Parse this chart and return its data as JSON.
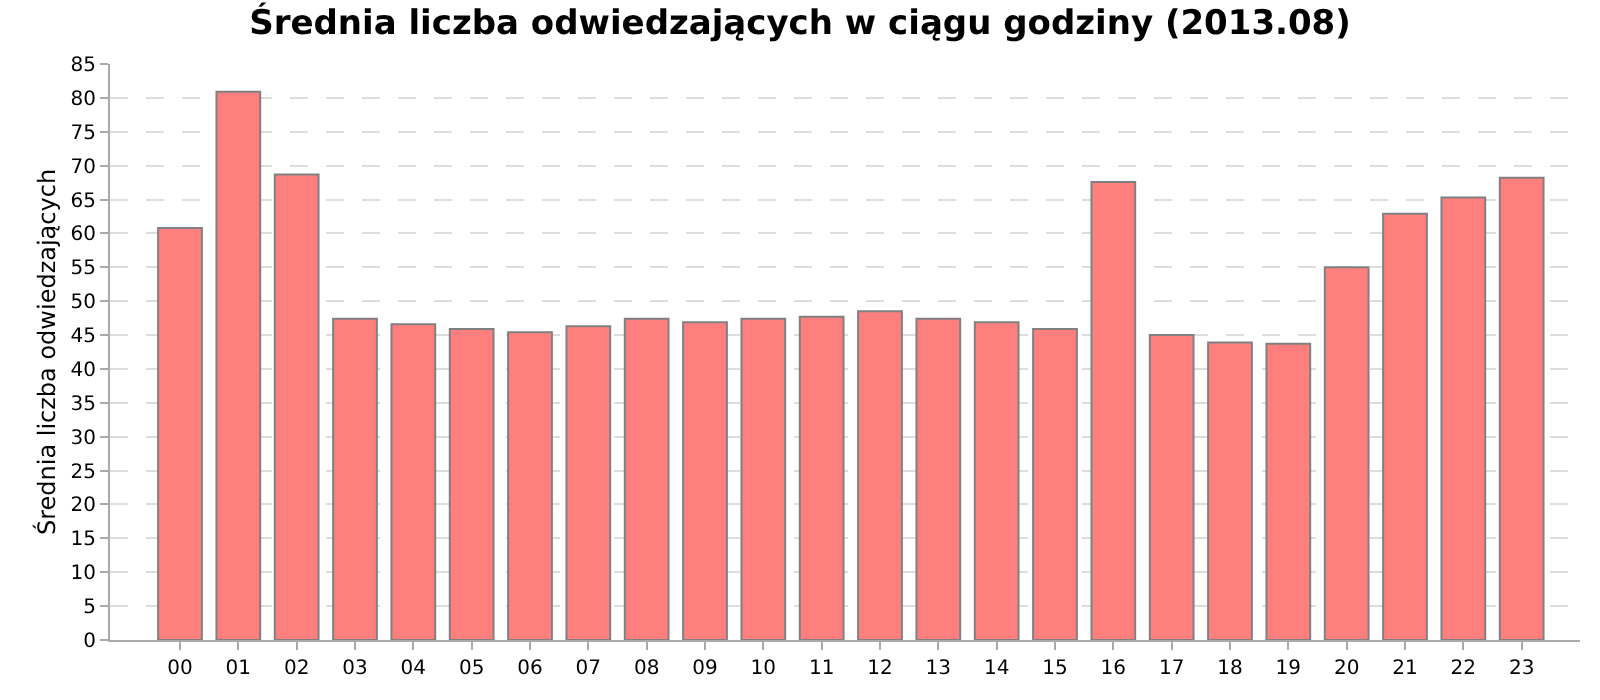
{
  "chart_data": {
    "type": "bar",
    "title": "Średnia liczba odwiedzających w ciągu godziny (2013.08)",
    "ylabel": "Średnia liczba odwiedzających",
    "categories": [
      "00",
      "01",
      "02",
      "03",
      "04",
      "05",
      "06",
      "07",
      "08",
      "09",
      "10",
      "11",
      "12",
      "13",
      "14",
      "15",
      "16",
      "17",
      "18",
      "19",
      "20",
      "21",
      "22",
      "23"
    ],
    "values": [
      60.8,
      80.9,
      68.7,
      47.4,
      46.6,
      45.9,
      45.4,
      46.3,
      47.4,
      46.9,
      47.4,
      47.7,
      48.5,
      47.4,
      46.9,
      45.9,
      67.6,
      45.0,
      43.9,
      43.7,
      55.0,
      62.9,
      65.3,
      68.2
    ],
    "color": "#ff7f7f",
    "ylim": [
      0,
      85
    ],
    "yticks": [
      0,
      5,
      10,
      15,
      20,
      25,
      30,
      35,
      40,
      45,
      50,
      55,
      60,
      65,
      70,
      75,
      80,
      85
    ],
    "grid": "y"
  }
}
